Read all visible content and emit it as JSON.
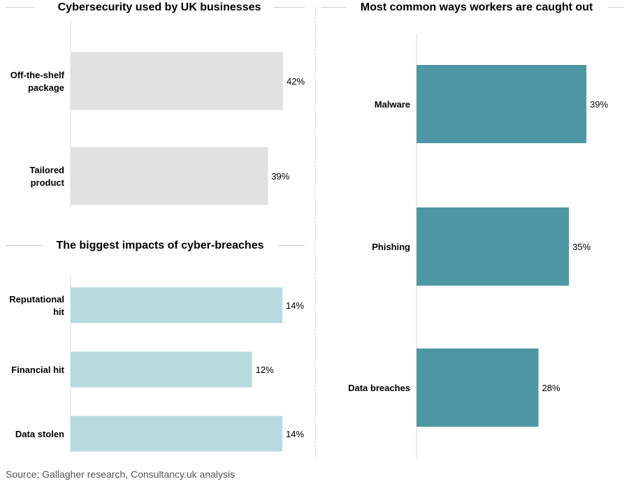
{
  "chart_data": [
    {
      "type": "bar",
      "orientation": "horizontal",
      "title": "Cybersecurity used by UK businesses",
      "categories": [
        [
          "Off-the-shelf",
          "package"
        ],
        [
          "Tailored",
          "product"
        ]
      ],
      "values": [
        42,
        39
      ],
      "value_labels": [
        "42%",
        "39%"
      ],
      "xlim": [
        0,
        42
      ],
      "color": "#e2e2e2"
    },
    {
      "type": "bar",
      "orientation": "horizontal",
      "title": "The biggest impacts of cyber-breaches",
      "categories": [
        [
          "Reputational",
          "hit"
        ],
        [
          "Financial hit"
        ],
        [
          "Data stolen"
        ]
      ],
      "values": [
        14,
        12,
        14
      ],
      "value_labels": [
        "14%",
        "12%",
        "14%"
      ],
      "xlim": [
        0,
        14
      ],
      "color": "#b8dbe0"
    },
    {
      "type": "bar",
      "orientation": "horizontal",
      "title": "Most common ways workers are caught out",
      "categories": [
        [
          "Malware"
        ],
        [
          "Phishing"
        ],
        [
          "Data breaches"
        ]
      ],
      "values": [
        39,
        35,
        28
      ],
      "value_labels": [
        "39%",
        "35%",
        "28%"
      ],
      "xlim": [
        0,
        39
      ],
      "color": "#4e97a5"
    }
  ],
  "footer": {
    "source": "Source: Gallagher research, Consultancy.uk analysis"
  }
}
